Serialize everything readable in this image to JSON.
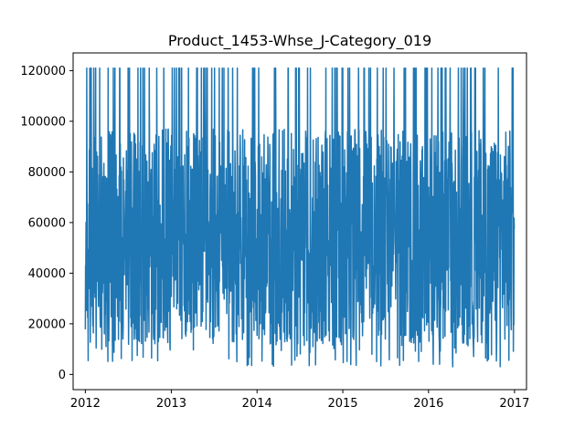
{
  "chart_data": {
    "type": "line",
    "title": "Product_1453-Whse_J-Category_019",
    "xlabel": "",
    "ylabel": "",
    "x_start": "2012-01-01",
    "x_end": "2016-12-31",
    "xlim": [
      "2011-11-10",
      "2017-02-21"
    ],
    "ylim": [
      -6000,
      127000
    ],
    "x_ticks": [
      "2012",
      "2013",
      "2014",
      "2015",
      "2016",
      "2017"
    ],
    "y_ticks": [
      0,
      20000,
      40000,
      60000,
      80000,
      100000,
      120000
    ],
    "y_tick_labels": [
      "0",
      "20000",
      "40000",
      "60000",
      "80000",
      "100000",
      "120000"
    ],
    "grid": false,
    "legend": "none",
    "series": [
      {
        "color": "#1f77b4",
        "note": "Daily demand, Jan 2012 - Dec 2016, values oscillating roughly between 0 and 121000 with frequent spikes to the 121000 cap"
      }
    ]
  }
}
